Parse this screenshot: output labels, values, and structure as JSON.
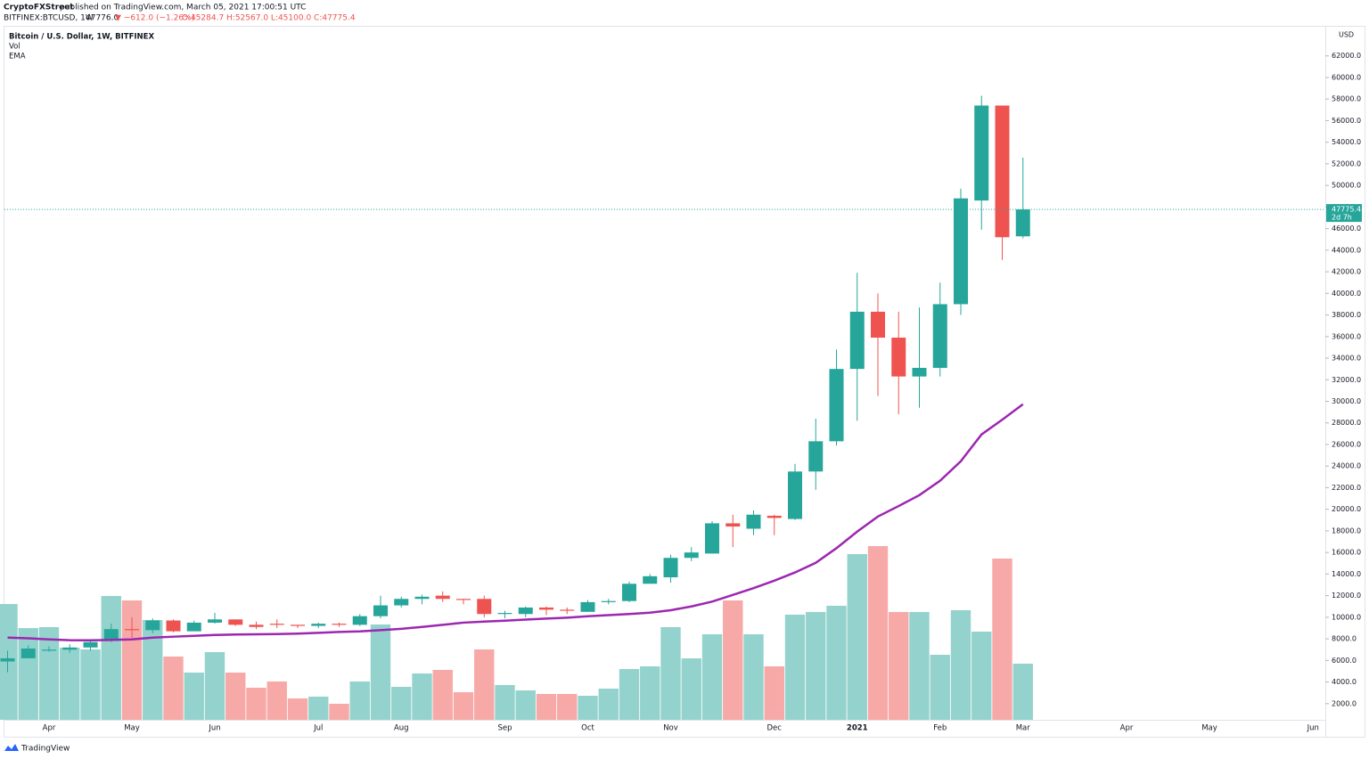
{
  "header": {
    "author": "CryptoFXStreet",
    "published": "published on TradingView.com, March 05, 2021 17:00:51 UTC",
    "symbol": "BITFINEX:BTCUSD, 1W",
    "last": "47776.0",
    "change": "▼ −612.0 (−1.26%)",
    "ohlc": "O:45284.7 H:52567.0 L:45100.0 C:47775.4"
  },
  "legend": {
    "title": "Bitcoin / U.S. Dollar, 1W, BITFINEX",
    "vol": "Vol",
    "ema": "EMA"
  },
  "currency": "USD",
  "footer": "TradingView",
  "chart_data": {
    "type": "candlestick",
    "categories": [
      null,
      null,
      "Apr",
      null,
      null,
      null,
      "May",
      null,
      null,
      null,
      "Jun",
      null,
      null,
      null,
      null,
      "Jul",
      null,
      null,
      null,
      "Aug",
      null,
      null,
      null,
      null,
      "Sep",
      null,
      null,
      null,
      "Oct",
      null,
      null,
      null,
      "Nov",
      null,
      null,
      null,
      null,
      "Dec",
      null,
      null,
      null,
      "2021",
      null,
      null,
      null,
      "Feb",
      null,
      null,
      null,
      "Mar",
      null,
      null,
      null,
      null,
      "Apr",
      null,
      null,
      null,
      "May",
      null,
      null,
      null,
      null,
      "Jun"
    ],
    "open": [
      5900,
      6200,
      6900,
      7000,
      7200,
      7800,
      8900,
      8800,
      9700,
      8700,
      9500,
      9800,
      9300,
      9400,
      9300,
      9200,
      9400,
      9300,
      10100,
      11100,
      11700,
      12000,
      11700,
      11700,
      10300,
      10300,
      10900,
      10700,
      10500,
      11400,
      11500,
      13100,
      13700,
      15500,
      15900,
      18700,
      18200,
      19400,
      19100,
      23500,
      26300,
      33000,
      38300,
      35900,
      32300,
      33100,
      39000,
      48600,
      57400,
      45284.7,
      null,
      null,
      null,
      null,
      null,
      null,
      null,
      null,
      null,
      null,
      null,
      null,
      null,
      null
    ],
    "high": [
      6900,
      7400,
      7300,
      7500,
      7800,
      9400,
      10000,
      9900,
      9800,
      9700,
      10400,
      9800,
      9600,
      9800,
      9300,
      9500,
      9500,
      10300,
      12000,
      11900,
      12100,
      12400,
      11700,
      12000,
      10600,
      11000,
      11000,
      10900,
      11600,
      11700,
      13300,
      14000,
      15800,
      16500,
      18900,
      19500,
      19900,
      19500,
      24200,
      28400,
      34800,
      41900,
      40000,
      38300,
      38700,
      41000,
      49700,
      58300,
      57400,
      52567,
      null,
      null,
      null,
      null,
      null,
      null,
      null,
      null,
      null,
      null,
      null,
      null,
      null,
      null
    ],
    "low": [
      4900,
      6200,
      6800,
      6700,
      6900,
      7700,
      8100,
      8500,
      8600,
      8700,
      9400,
      9200,
      8900,
      9000,
      9000,
      9000,
      9100,
      9200,
      9900,
      10900,
      11200,
      11400,
      11200,
      10000,
      9900,
      10000,
      10200,
      10300,
      10500,
      11200,
      11400,
      13200,
      13200,
      15200,
      15900,
      16500,
      17600,
      17600,
      19000,
      21800,
      25900,
      28200,
      30500,
      28800,
      29400,
      32300,
      38000,
      45900,
      43100,
      45100,
      null,
      null,
      null,
      null,
      null,
      null,
      null,
      null,
      null,
      null,
      null,
      null,
      null,
      null
    ],
    "close": [
      6200,
      7100,
      7000,
      7200,
      7700,
      8900,
      8800,
      9700,
      8700,
      9500,
      9800,
      9300,
      9100,
      9300,
      9200,
      9400,
      9300,
      10100,
      11100,
      11700,
      11900,
      11700,
      11600,
      10300,
      10400,
      10900,
      10700,
      10600,
      11400,
      11500,
      13100,
      13800,
      15500,
      16000,
      18700,
      18400,
      19500,
      19200,
      23500,
      26300,
      33000,
      38300,
      35900,
      32300,
      33100,
      39000,
      48800,
      57400,
      45200,
      47775.4,
      null,
      null,
      null,
      null,
      null,
      null,
      null,
      null,
      null,
      null,
      null,
      null,
      null,
      null
    ],
    "volume": [
      130,
      103,
      104,
      81,
      79,
      139,
      134,
      112,
      71,
      53,
      76,
      53,
      36,
      43,
      24,
      26,
      18,
      43,
      107,
      37,
      52,
      56,
      31,
      79,
      39,
      33,
      29,
      29,
      27,
      35,
      57,
      60,
      104,
      69,
      96,
      134,
      96,
      60,
      118,
      121,
      128,
      186,
      195,
      121,
      121,
      73,
      123,
      99,
      181,
      63,
      null,
      null,
      null,
      null,
      null,
      null,
      null,
      null,
      null,
      null,
      null,
      null,
      null,
      null
    ],
    "ema": [
      8110,
      8050,
      7950,
      7880,
      7860,
      7900,
      7950,
      8110,
      8200,
      8280,
      8360,
      8400,
      8420,
      8440,
      8480,
      8560,
      8640,
      8690,
      8800,
      8930,
      9100,
      9300,
      9500,
      9600,
      9680,
      9780,
      9880,
      9960,
      10090,
      10200,
      10300,
      10420,
      10650,
      11000,
      11450,
      12070,
      12700,
      13390,
      14150,
      15040,
      16400,
      17930,
      19330,
      20300,
      21310,
      22640,
      24450,
      26930,
      28300,
      29730,
      null,
      null,
      null,
      null,
      null,
      null,
      null,
      null,
      null,
      null,
      null,
      null,
      null,
      null
    ],
    "last_price_label": "47775.4",
    "countdown": "2d 7h",
    "up_color": "#26a69a",
    "down_color": "#ef5350",
    "volume_up_color": "#94d3cd",
    "volume_down_color": "#f7a9a7",
    "ema_color": "#9c27b0",
    "ylim": [
      500,
      64700
    ],
    "yticks": [
      {
        "value": 2000,
        "label": "2000.0"
      },
      {
        "value": 4000,
        "label": "4000.0"
      },
      {
        "value": 6000,
        "label": "6000.0"
      },
      {
        "value": 8000,
        "label": "8000.0"
      },
      {
        "value": 10000,
        "label": "10000.0"
      },
      {
        "value": 12000,
        "label": "12000.0"
      },
      {
        "value": 14000,
        "label": "14000.0"
      },
      {
        "value": 16000,
        "label": "16000.0"
      },
      {
        "value": 18000,
        "label": "18000.0"
      },
      {
        "value": 20000,
        "label": "20000.0"
      },
      {
        "value": 22000,
        "label": "22000.0"
      },
      {
        "value": 24000,
        "label": "24000.0"
      },
      {
        "value": 26000,
        "label": "26000.0"
      },
      {
        "value": 28000,
        "label": "28000.0"
      },
      {
        "value": 30000,
        "label": "30000.0"
      },
      {
        "value": 32000,
        "label": "32000.0"
      },
      {
        "value": 34000,
        "label": "34000.0"
      },
      {
        "value": 36000,
        "label": "36000.0"
      },
      {
        "value": 38000,
        "label": "38000.0"
      },
      {
        "value": 40000,
        "label": "40000.0"
      },
      {
        "value": 42000,
        "label": "42000.0"
      },
      {
        "value": 44000,
        "label": "44000.0"
      },
      {
        "value": 46000,
        "label": "46000.0"
      },
      {
        "value": 48000,
        "label": "48000.0"
      },
      {
        "value": 50000,
        "label": "50000.0"
      },
      {
        "value": 52000,
        "label": "52000.0"
      },
      {
        "value": 54000,
        "label": "54000.0"
      },
      {
        "value": 56000,
        "label": "56000.0"
      },
      {
        "value": 58000,
        "label": "58000.0"
      },
      {
        "value": 60000,
        "label": "60000.0"
      },
      {
        "value": 62000,
        "label": "62000.0"
      }
    ]
  }
}
